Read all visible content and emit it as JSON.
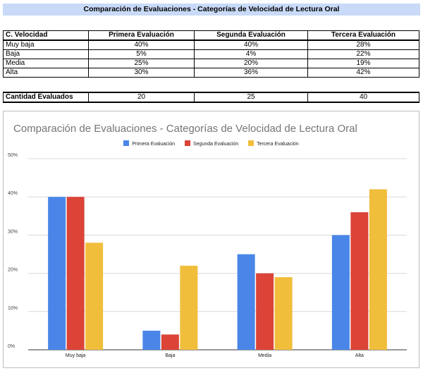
{
  "header": {
    "title": "Comparación de Evaluaciones - Categorías de Velocidad de Lectura Oral"
  },
  "table": {
    "headers": [
      "C. Velocidad",
      "Primera Evaluación",
      "Segunda Evaluación",
      "Tercera Evaluación"
    ],
    "rows": [
      [
        "Muy baja",
        "40%",
        "40%",
        "28%"
      ],
      [
        "Baja",
        "5%",
        "4%",
        "22%"
      ],
      [
        "Media",
        "25%",
        "20%",
        "19%"
      ],
      [
        "Alta",
        "30%",
        "36%",
        "42%"
      ]
    ],
    "count_row": [
      "Cantidad Evaluados",
      "20",
      "25",
      "40"
    ]
  },
  "chart_data": {
    "type": "bar",
    "title": "Comparación de Evaluaciones - Categorías de Velocidad de Lectura Oral",
    "categories": [
      "Muy baja",
      "Baja",
      "Media",
      "Alta"
    ],
    "series": [
      {
        "name": "Primera Evaluación",
        "values": [
          40,
          5,
          25,
          30
        ],
        "color": "#4a86e8"
      },
      {
        "name": "Segunda Evaluación",
        "values": [
          40,
          4,
          20,
          36
        ],
        "color": "#db4437"
      },
      {
        "name": "Tercera Evaluación",
        "values": [
          28,
          22,
          19,
          42
        ],
        "color": "#f1be3c"
      }
    ],
    "ylim": [
      0,
      50
    ],
    "yticks": [
      0,
      10,
      20,
      30,
      40,
      50
    ],
    "ytick_labels": [
      "0%",
      "10%",
      "20%",
      "30%",
      "40%",
      "50%"
    ],
    "grid": true,
    "legend_position": "top-center",
    "xlabel": "",
    "ylabel": ""
  }
}
